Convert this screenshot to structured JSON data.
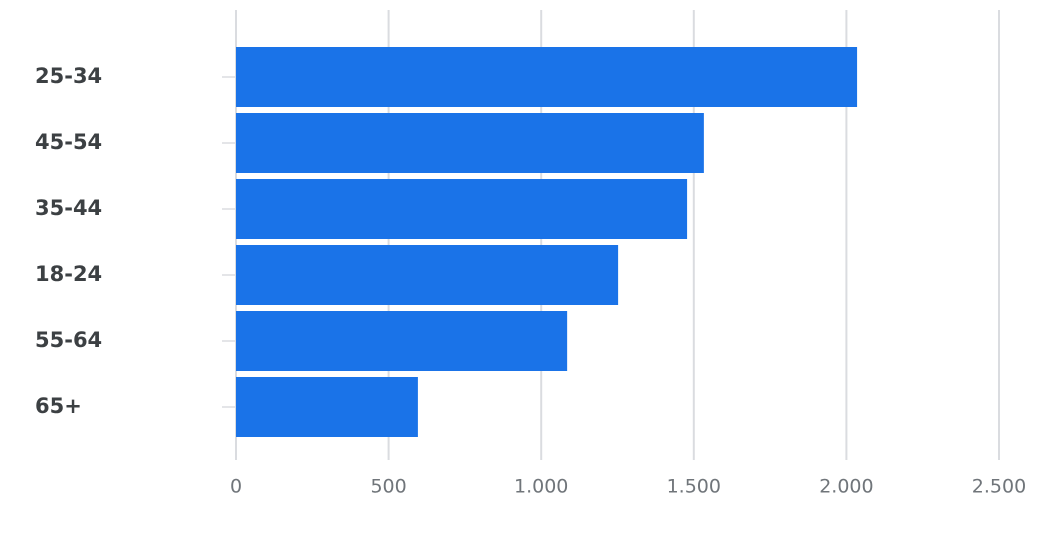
{
  "chart_data": {
    "type": "bar",
    "orientation": "horizontal",
    "categories": [
      "25-34",
      "45-54",
      "35-44",
      "18-24",
      "55-64",
      "65+"
    ],
    "values": [
      2035,
      1533,
      1478,
      1252,
      1085,
      596
    ],
    "color": "#1a73e8",
    "xlim": [
      0,
      2500
    ],
    "xticks": [
      0,
      500,
      {
        "value": 1000,
        "label": "1.000"
      },
      {
        "value": 1500,
        "label": "1.500"
      },
      {
        "value": 2000,
        "label": "2.000"
      },
      {
        "value": 2500,
        "label": "2.500"
      }
    ],
    "grid": true
  }
}
